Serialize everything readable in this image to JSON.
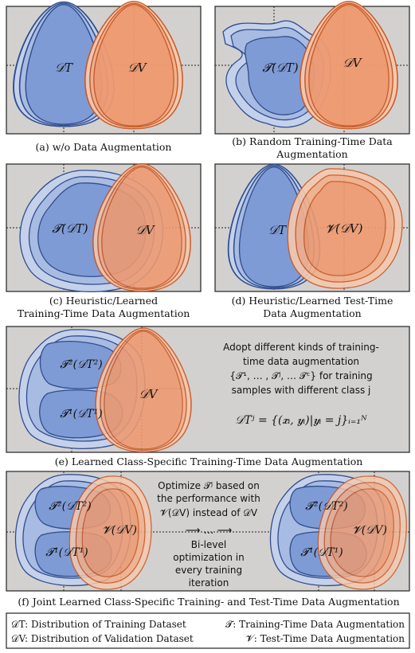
{
  "colors": {
    "panel_bg": "#d3d1d0",
    "blue_fill": "#7f9bd6",
    "blue_light": "#b9c9e8",
    "blue_stroke": "#2f4d8e",
    "orange_fill": "#ef9a70",
    "orange_light": "#f5c4a8",
    "orange_stroke": "#c9551e"
  },
  "panels": {
    "a": {
      "caption": "(a) w/o Data Augmentation",
      "blue_label": "𝒟T",
      "orange_label": "𝒟V"
    },
    "b": {
      "caption_line1": "(b) Random Training-Time Data",
      "caption_line2": "Augmentation",
      "blue_label": "𝓣(𝒟T)",
      "orange_label": "𝒟V"
    },
    "c": {
      "caption_line1": "(c) Heuristic/Learned",
      "caption_line2": "Training-Time Data Augmentation",
      "blue_label": "𝓣(𝒟T)",
      "orange_label": "𝒟V"
    },
    "d": {
      "caption_line1": "(d) Heuristic/Learned Test-Time",
      "caption_line2": "Data Augmentation",
      "blue_label": "𝒟T",
      "orange_label": "𝓥(𝒟V)"
    },
    "e": {
      "caption": "(e) Learned Class-Specific Training-Time Data Augmentation",
      "blue_label_top": "𝓣²(𝒟T²)",
      "blue_label_bottom": "𝓣¹(𝒟T¹)",
      "orange_label": "𝒟V",
      "text_lines": [
        "Adopt different kinds of training-",
        "time data augmentation",
        "{𝓣¹, … , 𝓣ʲ, … 𝓣ᶜ} for training",
        "samples with different class j"
      ],
      "formula": "𝒟Tʲ = {(𝒙ᵢ, 𝒚ᵢ)|𝒚ᵢ = j}ᵢ₌₁ᴺ"
    },
    "f": {
      "caption": "(f) Joint Learned Class-Specific Training- and Test-Time Data Augmentation",
      "left_top": "𝓣²(𝒟T²)",
      "left_bottom": "𝓣¹(𝒟T¹)",
      "left_orange": "𝓥(𝒟V)",
      "right_top": "𝓣²(𝒟T²)",
      "right_bottom": "𝓣¹(𝒟T¹)",
      "right_orange": "𝓥(𝒟V)",
      "middle_lines_top": [
        "Optimize 𝓣ʲ based on",
        "the performance with",
        "𝓥(𝒟V) instead of 𝒟V"
      ],
      "middle_arrow": "⟶ … ⟶",
      "middle_lines_bottom": [
        "Bi-level",
        "optimization in",
        "every training",
        "iteration"
      ]
    }
  },
  "legend": {
    "row1_left": "𝒟T: Distribution of Training Dataset",
    "row1_right": "𝓣: Training-Time Data Augmentation",
    "row2_left": "𝒟V: Distribution of Validation Dataset",
    "row2_right": "𝓥: Test-Time Data Augmentation"
  }
}
